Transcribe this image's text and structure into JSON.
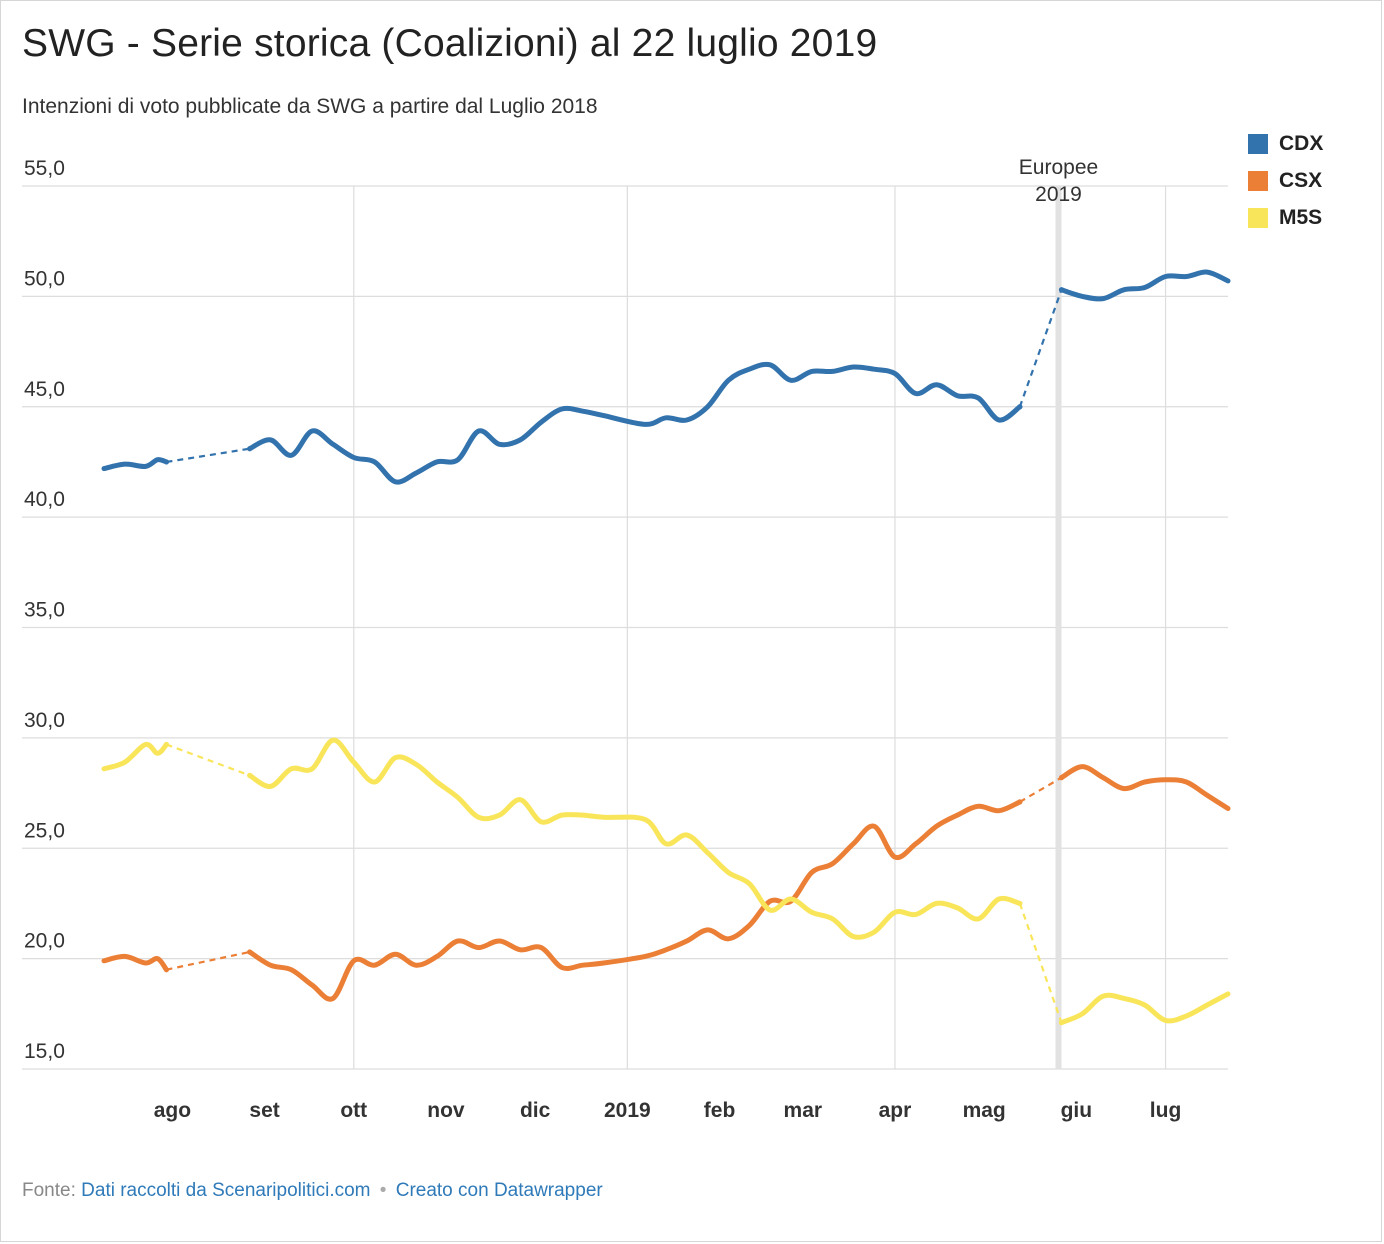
{
  "header": {
    "title": "SWG - Serie storica (Coalizioni) al 22 luglio 2019",
    "subtitle": "Intenzioni di voto pubblicate da SWG a partire dal Luglio 2018"
  },
  "footer": {
    "source_prefix": "Fonte:",
    "source_link": "Dati raccolti da Scenaripolitici.com",
    "separator": "•",
    "credit_link": "Creato con Datawrapper"
  },
  "colors": {
    "CDX": "#3272ad",
    "CSX": "#ec7f36",
    "M5S": "#f9e55a",
    "grid": "#dddddd",
    "highlight": "#e2e2e2"
  },
  "chart_data": {
    "type": "line",
    "title": "SWG - Serie storica (Coalizioni) al 22 luglio 2019",
    "subtitle": "Intenzioni di voto pubblicate da SWG a partire dal Luglio 2018",
    "xlabel": "",
    "ylabel": "",
    "ylim": [
      15,
      55
    ],
    "y_ticks": [
      "15,0",
      "20,0",
      "25,0",
      "30,0",
      "35,0",
      "40,0",
      "45,0",
      "50,0",
      "55,0"
    ],
    "y_tick_values": [
      15,
      20,
      25,
      30,
      35,
      40,
      45,
      50,
      55
    ],
    "x_range": [
      "2018-07-09",
      "2019-07-22"
    ],
    "x_ticks": [
      {
        "label": "ago",
        "date": "2018-08-01",
        "bold": true
      },
      {
        "label": "set",
        "date": "2018-09-01",
        "bold": true
      },
      {
        "label": "ott",
        "date": "2018-10-01",
        "bold": true
      },
      {
        "label": "nov",
        "date": "2018-11-01",
        "bold": true
      },
      {
        "label": "dic",
        "date": "2018-12-01",
        "bold": true
      },
      {
        "label": "2019",
        "date": "2019-01-01",
        "bold": true
      },
      {
        "label": "feb",
        "date": "2019-02-01",
        "bold": true
      },
      {
        "label": "mar",
        "date": "2019-03-01",
        "bold": true
      },
      {
        "label": "apr",
        "date": "2019-04-01",
        "bold": true
      },
      {
        "label": "mag",
        "date": "2019-05-01",
        "bold": true
      },
      {
        "label": "giu",
        "date": "2019-06-01",
        "bold": true
      },
      {
        "label": "lug",
        "date": "2019-07-01",
        "bold": true
      }
    ],
    "vertical_gridlines": [
      "2018-10-01",
      "2019-01-01",
      "2019-04-01",
      "2019-07-01"
    ],
    "annotation": {
      "date": "2019-05-26",
      "line1": "Europee",
      "line2": "2019"
    },
    "legend_position": "top-right",
    "series": [
      {
        "name": "CDX",
        "gaps": [
          [
            "2018-07-30",
            "2018-08-27"
          ],
          [
            "2019-05-13",
            "2019-05-27"
          ]
        ],
        "points": [
          [
            "2018-07-09",
            42.2
          ],
          [
            "2018-07-16",
            42.4
          ],
          [
            "2018-07-23",
            42.3
          ],
          [
            "2018-07-27",
            42.6
          ],
          [
            "2018-07-30",
            42.5
          ],
          [
            "2018-08-27",
            43.1
          ],
          [
            "2018-09-03",
            43.5
          ],
          [
            "2018-09-10",
            42.8
          ],
          [
            "2018-09-17",
            43.9
          ],
          [
            "2018-09-24",
            43.3
          ],
          [
            "2018-10-01",
            42.7
          ],
          [
            "2018-10-08",
            42.5
          ],
          [
            "2018-10-15",
            41.6
          ],
          [
            "2018-10-22",
            42.0
          ],
          [
            "2018-10-29",
            42.5
          ],
          [
            "2018-11-05",
            42.6
          ],
          [
            "2018-11-12",
            43.9
          ],
          [
            "2018-11-19",
            43.3
          ],
          [
            "2018-11-26",
            43.5
          ],
          [
            "2018-12-03",
            44.3
          ],
          [
            "2018-12-10",
            44.9
          ],
          [
            "2018-12-17",
            44.8
          ],
          [
            "2018-12-24",
            44.6
          ],
          [
            "2019-01-07",
            44.2
          ],
          [
            "2019-01-14",
            44.5
          ],
          [
            "2019-01-21",
            44.4
          ],
          [
            "2019-01-28",
            45.0
          ],
          [
            "2019-02-04",
            46.2
          ],
          [
            "2019-02-11",
            46.7
          ],
          [
            "2019-02-18",
            46.9
          ],
          [
            "2019-02-25",
            46.2
          ],
          [
            "2019-03-04",
            46.6
          ],
          [
            "2019-03-11",
            46.6
          ],
          [
            "2019-03-18",
            46.8
          ],
          [
            "2019-03-25",
            46.7
          ],
          [
            "2019-04-01",
            46.5
          ],
          [
            "2019-04-08",
            45.6
          ],
          [
            "2019-04-15",
            46.0
          ],
          [
            "2019-04-22",
            45.5
          ],
          [
            "2019-04-29",
            45.4
          ],
          [
            "2019-05-06",
            44.4
          ],
          [
            "2019-05-13",
            45.0
          ],
          [
            "2019-05-27",
            50.3
          ],
          [
            "2019-06-03",
            50.0
          ],
          [
            "2019-06-10",
            49.9
          ],
          [
            "2019-06-17",
            50.3
          ],
          [
            "2019-06-24",
            50.4
          ],
          [
            "2019-07-01",
            50.9
          ],
          [
            "2019-07-08",
            50.9
          ],
          [
            "2019-07-15",
            51.1
          ],
          [
            "2019-07-22",
            50.7
          ]
        ]
      },
      {
        "name": "CSX",
        "gaps": [
          [
            "2018-07-30",
            "2018-08-27"
          ],
          [
            "2019-05-13",
            "2019-05-27"
          ]
        ],
        "points": [
          [
            "2018-07-09",
            19.9
          ],
          [
            "2018-07-16",
            20.1
          ],
          [
            "2018-07-23",
            19.8
          ],
          [
            "2018-07-27",
            20.0
          ],
          [
            "2018-07-30",
            19.5
          ],
          [
            "2018-08-27",
            20.3
          ],
          [
            "2018-09-03",
            19.7
          ],
          [
            "2018-09-10",
            19.5
          ],
          [
            "2018-09-17",
            18.8
          ],
          [
            "2018-09-24",
            18.2
          ],
          [
            "2018-10-01",
            19.9
          ],
          [
            "2018-10-08",
            19.7
          ],
          [
            "2018-10-15",
            20.2
          ],
          [
            "2018-10-22",
            19.7
          ],
          [
            "2018-10-29",
            20.1
          ],
          [
            "2018-11-05",
            20.8
          ],
          [
            "2018-11-12",
            20.5
          ],
          [
            "2018-11-19",
            20.8
          ],
          [
            "2018-11-26",
            20.4
          ],
          [
            "2018-12-03",
            20.5
          ],
          [
            "2018-12-10",
            19.6
          ],
          [
            "2018-12-17",
            19.7
          ],
          [
            "2018-12-24",
            19.8
          ],
          [
            "2019-01-07",
            20.1
          ],
          [
            "2019-01-14",
            20.4
          ],
          [
            "2019-01-21",
            20.8
          ],
          [
            "2019-01-28",
            21.3
          ],
          [
            "2019-02-04",
            20.9
          ],
          [
            "2019-02-11",
            21.5
          ],
          [
            "2019-02-18",
            22.6
          ],
          [
            "2019-02-25",
            22.6
          ],
          [
            "2019-03-04",
            23.9
          ],
          [
            "2019-03-11",
            24.3
          ],
          [
            "2019-03-18",
            25.2
          ],
          [
            "2019-03-25",
            26.0
          ],
          [
            "2019-04-01",
            24.6
          ],
          [
            "2019-04-08",
            25.2
          ],
          [
            "2019-04-15",
            26.0
          ],
          [
            "2019-04-22",
            26.5
          ],
          [
            "2019-04-29",
            26.9
          ],
          [
            "2019-05-06",
            26.7
          ],
          [
            "2019-05-13",
            27.1
          ],
          [
            "2019-05-27",
            28.2
          ],
          [
            "2019-06-03",
            28.7
          ],
          [
            "2019-06-10",
            28.2
          ],
          [
            "2019-06-17",
            27.7
          ],
          [
            "2019-06-24",
            28.0
          ],
          [
            "2019-07-01",
            28.1
          ],
          [
            "2019-07-08",
            28.0
          ],
          [
            "2019-07-15",
            27.4
          ],
          [
            "2019-07-22",
            26.8
          ]
        ]
      },
      {
        "name": "M5S",
        "gaps": [
          [
            "2018-07-30",
            "2018-08-27"
          ],
          [
            "2019-05-13",
            "2019-05-27"
          ]
        ],
        "points": [
          [
            "2018-07-09",
            28.6
          ],
          [
            "2018-07-16",
            28.9
          ],
          [
            "2018-07-23",
            29.7
          ],
          [
            "2018-07-27",
            29.3
          ],
          [
            "2018-07-30",
            29.7
          ],
          [
            "2018-08-27",
            28.3
          ],
          [
            "2018-09-03",
            27.8
          ],
          [
            "2018-09-10",
            28.6
          ],
          [
            "2018-09-17",
            28.6
          ],
          [
            "2018-09-24",
            29.9
          ],
          [
            "2018-10-01",
            28.9
          ],
          [
            "2018-10-08",
            28.0
          ],
          [
            "2018-10-15",
            29.1
          ],
          [
            "2018-10-22",
            28.8
          ],
          [
            "2018-10-29",
            28.0
          ],
          [
            "2018-11-05",
            27.3
          ],
          [
            "2018-11-12",
            26.4
          ],
          [
            "2018-11-19",
            26.5
          ],
          [
            "2018-11-26",
            27.2
          ],
          [
            "2018-12-03",
            26.2
          ],
          [
            "2018-12-10",
            26.5
          ],
          [
            "2018-12-17",
            26.5
          ],
          [
            "2018-12-24",
            26.4
          ],
          [
            "2019-01-07",
            26.3
          ],
          [
            "2019-01-14",
            25.2
          ],
          [
            "2019-01-21",
            25.6
          ],
          [
            "2019-01-28",
            24.8
          ],
          [
            "2019-02-04",
            23.9
          ],
          [
            "2019-02-11",
            23.4
          ],
          [
            "2019-02-18",
            22.2
          ],
          [
            "2019-02-25",
            22.7
          ],
          [
            "2019-03-04",
            22.1
          ],
          [
            "2019-03-11",
            21.8
          ],
          [
            "2019-03-18",
            21.0
          ],
          [
            "2019-03-25",
            21.2
          ],
          [
            "2019-04-01",
            22.1
          ],
          [
            "2019-04-08",
            22.0
          ],
          [
            "2019-04-15",
            22.5
          ],
          [
            "2019-04-22",
            22.3
          ],
          [
            "2019-04-29",
            21.8
          ],
          [
            "2019-05-06",
            22.7
          ],
          [
            "2019-05-13",
            22.5
          ],
          [
            "2019-05-27",
            17.1
          ],
          [
            "2019-06-03",
            17.5
          ],
          [
            "2019-06-10",
            18.3
          ],
          [
            "2019-06-17",
            18.2
          ],
          [
            "2019-06-24",
            17.9
          ],
          [
            "2019-07-01",
            17.2
          ],
          [
            "2019-07-08",
            17.4
          ],
          [
            "2019-07-15",
            17.9
          ],
          [
            "2019-07-22",
            18.4
          ]
        ]
      }
    ]
  }
}
